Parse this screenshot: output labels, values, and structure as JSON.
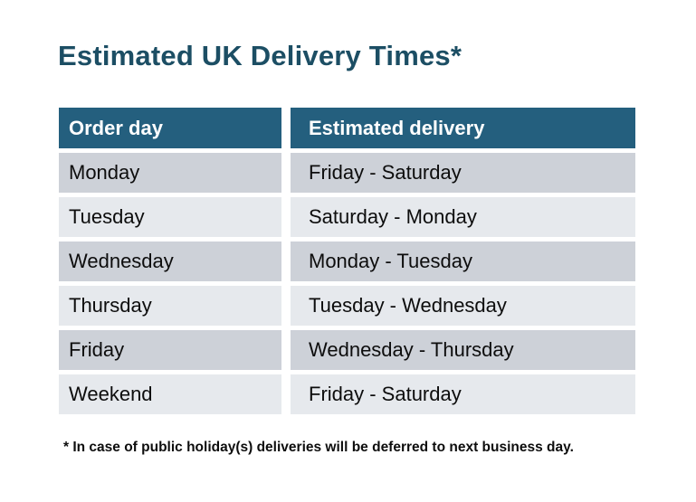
{
  "title": "Estimated UK Delivery Times*",
  "table": {
    "columns": [
      "Order day",
      "Estimated delivery"
    ],
    "rows": [
      {
        "order_day": "Monday",
        "estimated_delivery": "Friday - Saturday"
      },
      {
        "order_day": "Tuesday",
        "estimated_delivery": "Saturday - Monday"
      },
      {
        "order_day": "Wednesday",
        "estimated_delivery": "Monday - Tuesday"
      },
      {
        "order_day": "Thursday",
        "estimated_delivery": "Tuesday - Wednesday"
      },
      {
        "order_day": "Friday",
        "estimated_delivery": "Wednesday - Thursday"
      },
      {
        "order_day": "Weekend",
        "estimated_delivery": "Friday - Saturday"
      }
    ]
  },
  "footnote": "* In case of public holiday(s) deliveries will be deferred to next business day.",
  "colors": {
    "header_bg": "#245f7e",
    "title_color": "#1c4e64",
    "row_dark": "#cdd1d8",
    "row_light": "#e6e9ed",
    "text_color": "#0d0d0d",
    "page_bg": "#ffffff"
  }
}
